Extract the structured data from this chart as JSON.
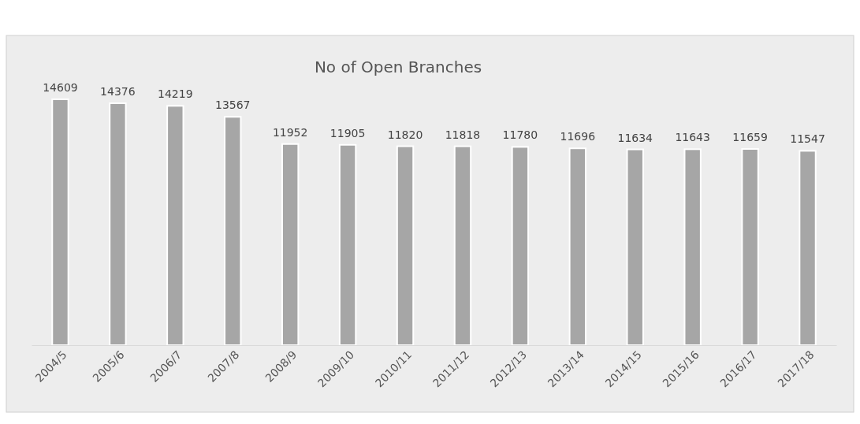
{
  "chart_data": {
    "type": "bar",
    "title": "No of Open Branches",
    "categories": [
      "2004/5",
      "2005/6",
      "2006/7",
      "2007/8",
      "2008/9",
      "2009/10",
      "2010/11",
      "2011/12",
      "2012/13",
      "2013/14",
      "2014/15",
      "2015/16",
      "2016/17",
      "2017/18"
    ],
    "values": [
      14609,
      14376,
      14219,
      13567,
      11952,
      11905,
      11820,
      11818,
      11780,
      11696,
      11634,
      11643,
      11659,
      11547
    ],
    "color": "#a6a6a6",
    "data_labels": true
  }
}
